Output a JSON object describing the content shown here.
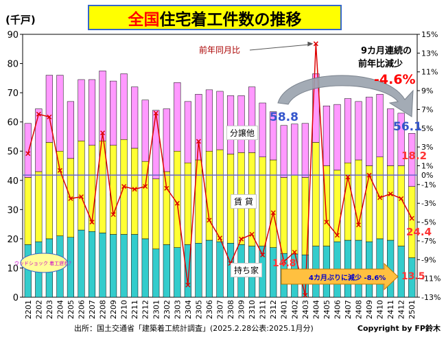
{
  "title": {
    "prefix": "全国",
    "rest": "住宅着工件数の推移"
  },
  "unit_label": "(千戸)",
  "source_text": "出所：国土交通省「建築着工統計調査」(2025.2.28公表:2025.1月分)",
  "copyright_text": "Copyright by FP鈴木",
  "segment_labels": {
    "bunjo": "分譲他",
    "chintai": "賃 貸",
    "mochiie": "持ち家"
  },
  "annotations": {
    "yoy_label": "前年同月比",
    "streak_line1": "9カ月連続の",
    "streak_line2": "前年比減少",
    "yoy_latest": "-4.6%",
    "value_588": "58.8",
    "value_561": "56.1",
    "value_182": "18.2",
    "value_244": "24.4",
    "value_148": "14.8",
    "value_135": "13.5",
    "banner": "4カ月ぶりに減少 -8.6%",
    "bubble": "ウッドショック 着工遅れ？"
  },
  "colors": {
    "mochiie": "#33cccc",
    "chintai": "#ffff33",
    "bunjo": "#ff99ff",
    "yoy_line": "#dd0000",
    "zero_line": "#6666cc",
    "title_bg": "#ffff00",
    "blue_text": "#3355cc"
  },
  "chart_data": {
    "type": "bar",
    "stacked": true,
    "categories": [
      "2201",
      "2202",
      "2203",
      "2204",
      "2205",
      "2206",
      "2207",
      "2208",
      "2209",
      "2210",
      "2211",
      "2212",
      "2301",
      "2302",
      "2303",
      "2304",
      "2305",
      "2306",
      "2307",
      "2308",
      "2309",
      "2310",
      "2311",
      "2312",
      "2401",
      "2402",
      "2403",
      "2404",
      "2405",
      "2406",
      "2407",
      "2408",
      "2409",
      "2410",
      "2411",
      "2412",
      "2501"
    ],
    "series": [
      {
        "name": "持ち家",
        "values": [
          18.0,
          19.0,
          20.0,
          21.0,
          20.5,
          23.0,
          22.5,
          22.0,
          21.5,
          21.5,
          21.5,
          20.0,
          16.5,
          18.0,
          17.0,
          18.0,
          18.5,
          19.5,
          19.0,
          18.5,
          18.0,
          17.5,
          17.5,
          17.0,
          15.0,
          14.8,
          14.5,
          17.5,
          17.5,
          19.0,
          19.5,
          19.5,
          19.0,
          20.0,
          19.5,
          17.5,
          13.5
        ]
      },
      {
        "name": "賃 貸",
        "values": [
          23.0,
          24.0,
          33.0,
          29.0,
          27.0,
          30.5,
          29.5,
          31.5,
          30.5,
          32.5,
          29.5,
          26.5,
          24.0,
          25.0,
          33.0,
          28.0,
          28.5,
          30.5,
          31.5,
          30.5,
          31.5,
          32.0,
          30.5,
          30.0,
          26.0,
          27.0,
          26.5,
          35.5,
          27.5,
          24.5,
          26.5,
          27.5,
          26.0,
          28.0,
          25.5,
          27.5,
          24.4
        ]
      },
      {
        "name": "分譲他",
        "values": [
          18.5,
          21.5,
          23.0,
          26.0,
          19.5,
          21.0,
          22.5,
          24.0,
          22.0,
          22.5,
          21.0,
          21.0,
          23.5,
          21.5,
          23.5,
          21.0,
          22.5,
          21.0,
          20.0,
          20.0,
          19.5,
          22.5,
          18.5,
          16.5,
          17.8,
          17.5,
          18.5,
          23.5,
          20.5,
          22.5,
          22.0,
          20.0,
          23.5,
          21.5,
          19.5,
          18.0,
          18.2
        ]
      }
    ],
    "line_series": {
      "name": "前年同月比",
      "axis": "right",
      "values": [
        2.3,
        6.5,
        6.2,
        0.5,
        -2.5,
        -2.3,
        -5.0,
        4.5,
        -4.2,
        -1.2,
        -1.5,
        -1.2,
        6.6,
        -1.4,
        -3.0,
        -11.7,
        3.6,
        -4.8,
        -6.7,
        -9.4,
        -6.8,
        -6.3,
        -8.5,
        -4.0,
        -9.2,
        -8.2,
        -12.8,
        14.0,
        -5.0,
        -6.4,
        -0.2,
        -5.3,
        0.0,
        -2.4,
        -2.0,
        -2.5,
        -4.6
      ]
    },
    "y_left": {
      "min": 0,
      "max": 90,
      "ticks": [
        0,
        10,
        20,
        30,
        40,
        50,
        60,
        70,
        80,
        90
      ]
    },
    "y_right": {
      "min": -13,
      "max": 15,
      "ticks": [
        "15%",
        "13%",
        "11%",
        "9%",
        "7%",
        "5%",
        "3%",
        "1%",
        "-1%",
        "-3%",
        "-5%",
        "-7%",
        "-9%",
        "-11%",
        "-13%"
      ],
      "zero_label": "0%"
    }
  }
}
